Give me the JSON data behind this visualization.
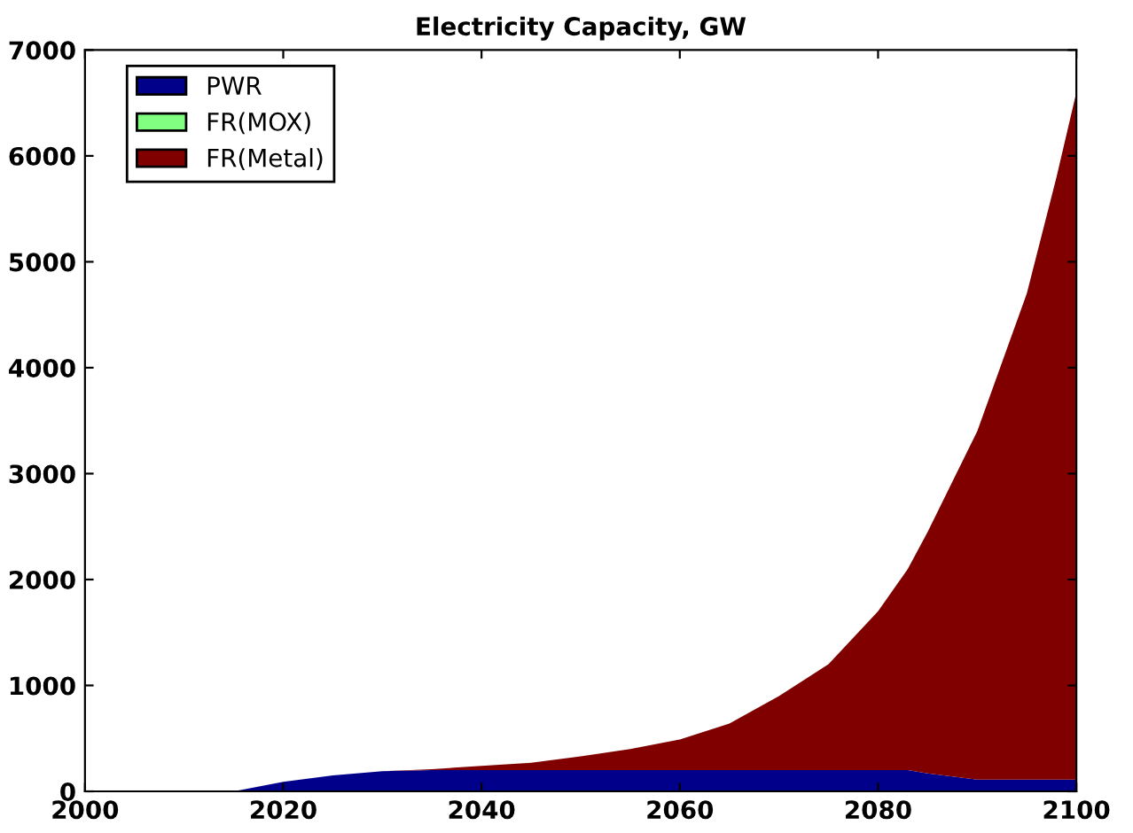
{
  "chart_data": {
    "type": "area",
    "stacked": true,
    "title": "Electricity Capacity, GW",
    "x": [
      2000,
      2015,
      2020,
      2025,
      2030,
      2035,
      2040,
      2045,
      2050,
      2055,
      2060,
      2065,
      2070,
      2075,
      2080,
      2083,
      2085,
      2090,
      2095,
      2098,
      2100
    ],
    "series": [
      {
        "name": "PWR",
        "color": "#00008b",
        "values": [
          0,
          0,
          90,
          150,
          190,
          200,
          200,
          200,
          200,
          200,
          200,
          200,
          200,
          200,
          200,
          200,
          170,
          110,
          110,
          110,
          110
        ]
      },
      {
        "name": "FR(MOX)",
        "color": "#80ff80",
        "values": [
          null,
          null,
          null,
          null,
          null,
          null,
          null,
          null,
          null,
          null,
          null,
          null,
          null,
          null,
          null,
          null,
          null,
          null,
          null,
          null,
          null
        ]
      },
      {
        "name": "FR(Metal)",
        "color": "#800000",
        "values": [
          0,
          0,
          0,
          0,
          0,
          10,
          40,
          70,
          130,
          200,
          290,
          440,
          700,
          1000,
          1500,
          1900,
          2280,
          3290,
          4590,
          5690,
          6490
        ]
      }
    ],
    "xlim": [
      2000,
      2100
    ],
    "xticks": [
      2000,
      2020,
      2040,
      2060,
      2080,
      2100
    ],
    "ylim": [
      0,
      7000
    ],
    "yticks": [
      0,
      1000,
      2000,
      3000,
      4000,
      5000,
      6000,
      7000
    ],
    "grid": false,
    "legend": "top left"
  }
}
